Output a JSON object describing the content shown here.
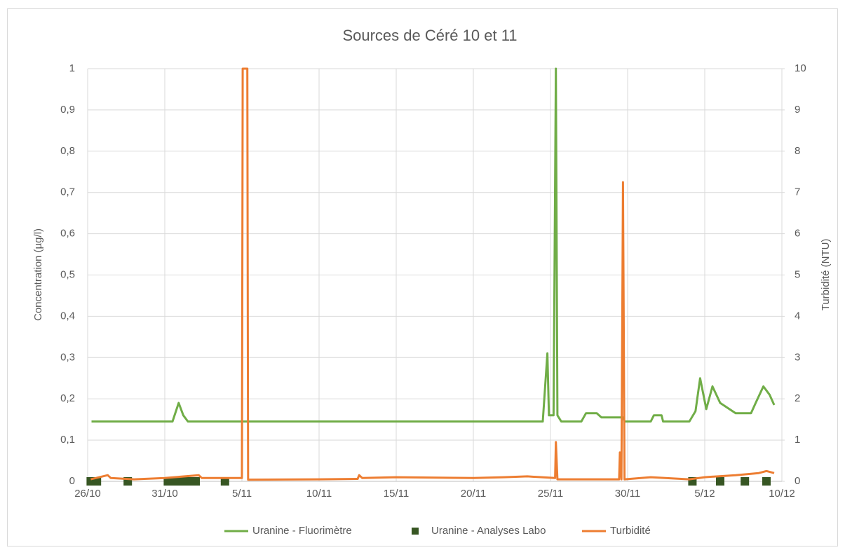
{
  "chart_data": {
    "type": "line",
    "title": "Sources de Céré 10 et 11",
    "y_label": "Concentration (µg/l)",
    "y2_label": "Turbidité (NTU)",
    "xlim": [
      0,
      45
    ],
    "xticks": [
      {
        "value": 0,
        "label": "26/10"
      },
      {
        "value": 5,
        "label": "31/10"
      },
      {
        "value": 10,
        "label": "5/11"
      },
      {
        "value": 15,
        "label": "10/11"
      },
      {
        "value": 20,
        "label": "15/11"
      },
      {
        "value": 25,
        "label": "20/11"
      },
      {
        "value": 30,
        "label": "25/11"
      },
      {
        "value": 35,
        "label": "30/11"
      },
      {
        "value": 40,
        "label": "5/12"
      },
      {
        "value": 45,
        "label": "10/12"
      }
    ],
    "ylim": [
      0,
      1
    ],
    "yticks": [
      0,
      {
        "value": 0.1,
        "label": "0,1"
      },
      {
        "value": 0.2,
        "label": "0,2"
      },
      {
        "value": 0.3,
        "label": "0,3"
      },
      {
        "value": 0.4,
        "label": "0,4"
      },
      {
        "value": 0.5,
        "label": "0,5"
      },
      {
        "value": 0.6,
        "label": "0,6"
      },
      {
        "value": 0.7,
        "label": "0,7"
      },
      {
        "value": 0.8,
        "label": "0,8"
      },
      {
        "value": 0.9,
        "label": "0,9"
      },
      1
    ],
    "y2lim": [
      0,
      10
    ],
    "y2ticks": [
      0,
      1,
      2,
      3,
      4,
      5,
      6,
      7,
      8,
      9,
      10
    ],
    "grid": true,
    "legend": "bottom",
    "series": [
      {
        "name": "Uranine - Fluorimètre",
        "color": "#70ad47",
        "marker": "line",
        "x": [
          0.25,
          1,
          3,
          5.5,
          5.9,
          6.2,
          6.5,
          10,
          15,
          20,
          25,
          29.5,
          29.8,
          29.9,
          30.2,
          30.35,
          30.45,
          30.7,
          32,
          32.3,
          33,
          33.3,
          34.7,
          34.8,
          36.5,
          36.7,
          37.2,
          37.3,
          39,
          39.4,
          39.7,
          40.1,
          40.5,
          41,
          42,
          43,
          43.3,
          43.8,
          44.2,
          44.5
        ],
        "values": [
          0.145,
          0.145,
          0.145,
          0.145,
          0.19,
          0.16,
          0.145,
          0.145,
          0.145,
          0.145,
          0.145,
          0.145,
          0.31,
          0.16,
          0.16,
          1,
          0.16,
          0.145,
          0.145,
          0.165,
          0.165,
          0.155,
          0.155,
          0.145,
          0.145,
          0.16,
          0.16,
          0.145,
          0.145,
          0.17,
          0.25,
          0.175,
          0.23,
          0.19,
          0.165,
          0.165,
          0.19,
          0.23,
          0.21,
          0.185
        ]
      },
      {
        "name": "Uranine - Analyses Labo",
        "color": "#375623",
        "marker": "square",
        "x": [
          0.2,
          0.6,
          2.6,
          5.2,
          5.6,
          6.0,
          6.5,
          7.0,
          8.9,
          39.2,
          41.0,
          42.6,
          44.0
        ],
        "values": [
          0,
          0,
          0,
          0,
          0,
          0,
          0,
          0,
          0,
          0,
          0,
          0,
          0
        ]
      },
      {
        "name": "Turbidité",
        "color": "#ed7d31",
        "marker": "line",
        "axis": "y2",
        "x": [
          0.2,
          1.3,
          1.5,
          3,
          5,
          7.2,
          7.4,
          10,
          10.05,
          10.35,
          10.4,
          15,
          17.5,
          17.6,
          17.8,
          20,
          25,
          27,
          28.5,
          30.3,
          30.35,
          30.45,
          33,
          34.45,
          34.5,
          34.6,
          34.7,
          34.8,
          36.5,
          39,
          40,
          42,
          43.5,
          44,
          44.5
        ],
        "values": [
          0.05,
          0.15,
          0.08,
          0.05,
          0.08,
          0.15,
          0.08,
          0.08,
          10,
          10,
          0.04,
          0.05,
          0.06,
          0.15,
          0.08,
          0.1,
          0.08,
          0.1,
          0.12,
          0.08,
          0.95,
          0.05,
          0.05,
          0.05,
          0.7,
          0.05,
          7.25,
          0.05,
          0.1,
          0.05,
          0.1,
          0.15,
          0.2,
          0.25,
          0.2
        ]
      }
    ]
  }
}
